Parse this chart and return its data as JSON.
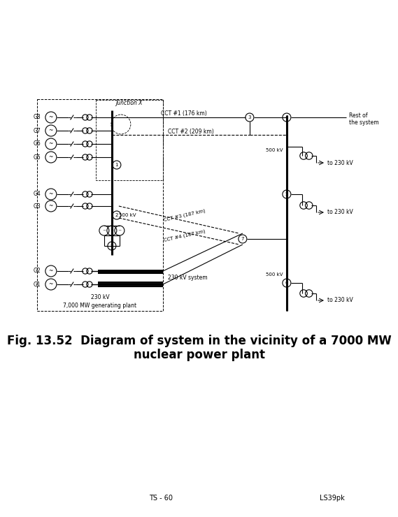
{
  "title_line1": "Fig. 13.52  Diagram of system in the vicinity of a 7000 MW",
  "title_line2": "nuclear power plant",
  "title_fontsize": 12,
  "footer_left": "TS - 60",
  "footer_right": "LS39pk",
  "background_color": "#ffffff",
  "generators_upper": [
    "G8",
    "G7",
    "G6",
    "G5"
  ],
  "generators_middle": [
    "G4",
    "G3"
  ],
  "generators_lower": [
    "G2",
    "G1"
  ],
  "cct_labels": [
    "CCT #1 (176 km)",
    "CCT #2 (209 km)",
    "CCT #3 (187 km)",
    "CCT #4 (187 km)"
  ],
  "plant_label": "7,000 MW generating plant",
  "kv230_label": "230 kV",
  "kv230_system_label": "230 kV system",
  "junction_label": "Junction X"
}
